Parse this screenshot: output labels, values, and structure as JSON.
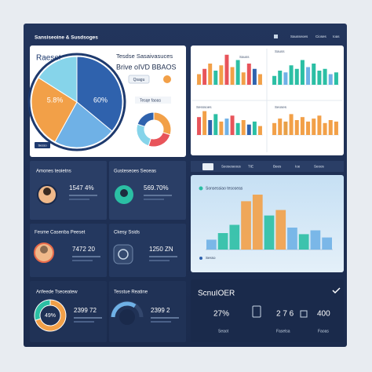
{
  "header": {
    "title": "Sansiseoine & Susdsoges",
    "links": [
      "Sausseoes",
      "Cioses",
      "Ioas"
    ]
  },
  "summary_card": {
    "title": "Raeset",
    "heading": "Tesdse Sasaivasuces",
    "subheading": "Brive oIVD BBAOS",
    "button": "Qsagu",
    "note": "Tesqe faoas",
    "badge": "Sesso",
    "pie": {
      "values": [
        36,
        22,
        26,
        16
      ],
      "colors": [
        "#2f62ad",
        "#6fb1e6",
        "#f2a048",
        "#86d4ea"
      ],
      "labels": [
        "5.8%",
        "60%"
      ]
    },
    "donut": {
      "values": [
        30,
        25,
        25,
        20
      ],
      "colors": [
        "#f2a048",
        "#e8545a",
        "#86d4ea",
        "#2f62ad"
      ]
    }
  },
  "bar_charts": [
    {
      "label": "Sauss",
      "values": [
        30,
        45,
        60,
        40,
        55,
        85,
        50,
        70,
        35,
        60,
        45,
        30
      ],
      "colors": [
        "#f2a048",
        "#e8545a",
        "#f2a048",
        "#2bbfa4",
        "#f2a048",
        "#e8545a",
        "#f2a048",
        "#2bbfa4",
        "#f2a048",
        "#e8545a",
        "#2f62ad",
        "#f2a048"
      ]
    },
    {
      "label": "Sauss",
      "values": [
        25,
        40,
        35,
        55,
        45,
        70,
        50,
        60,
        40,
        45,
        30,
        35
      ],
      "colors": [
        "#2bbfa4",
        "#2bbfa4",
        "#6fb1e6",
        "#2bbfa4",
        "#2bbfa4",
        "#2bbfa4",
        "#6fb1e6",
        "#2bbfa4",
        "#2bbfa4",
        "#2bbfa4",
        "#6fb1e6",
        "#2bbfa4"
      ]
    },
    {
      "label": "Sesssoes",
      "values": [
        60,
        80,
        50,
        70,
        45,
        55,
        65,
        40,
        50,
        35,
        45,
        30
      ],
      "colors": [
        "#e8545a",
        "#f2a048",
        "#2f62ad",
        "#2bbfa4",
        "#f2a048",
        "#6fb1e6",
        "#e8545a",
        "#2bbfa4",
        "#f2a048",
        "#2f62ad",
        "#2bbfa4",
        "#f2a048"
      ]
    },
    {
      "label": "Seoses",
      "values": [
        40,
        55,
        45,
        70,
        50,
        60,
        45,
        55,
        65,
        40,
        50,
        45
      ],
      "colors": [
        "#f2a048",
        "#f2a048",
        "#e8a048",
        "#f2a048",
        "#f2a048",
        "#f2a048",
        "#f2a048",
        "#f2a048",
        "#f2a048",
        "#f2a048",
        "#f2a048",
        "#f2a048"
      ]
    }
  ],
  "tiles": [
    {
      "title": "Amones teoietns",
      "value": "1547 4%"
    },
    {
      "title": "Gusteseoes Seoeas",
      "value": "569.70%"
    },
    {
      "title": "Fesme Casenba Peeset",
      "value": "7472 20"
    },
    {
      "title": "Ckesy Ssids",
      "value": "1250 ZN"
    },
    {
      "title": "Arifeede Tseoeatew",
      "value": "2399 72",
      "donut": {
        "values": [
          70,
          30
        ],
        "colors": [
          "#f2a048",
          "#2bbfa4"
        ],
        "center": "49%"
      }
    },
    {
      "title": "Tesstue Reatine",
      "value": "2399 2"
    }
  ],
  "tabs": [
    "Seoseseous",
    "TIE",
    "Bees",
    "Ioe",
    "Seoos"
  ],
  "main_chart": {
    "title": "Sonsessiao tesoseas",
    "legend": "Sesso",
    "values": [
      18,
      30,
      45,
      88,
      100,
      62,
      72,
      40,
      28,
      35,
      22
    ],
    "colors": [
      "#6fb1e6",
      "#2bbfa4",
      "#2bbfa4",
      "#f2a048",
      "#f2a048",
      "#2bbfa4",
      "#f2a048",
      "#6fb1e6",
      "#2bbfa4",
      "#6fb1e6",
      "#6fb1e6"
    ]
  },
  "stats_card": {
    "title": "ScnuIOER",
    "stats": [
      {
        "value": "27%",
        "label": "Seaot"
      },
      {
        "value": "2 7 6",
        "label": "Faselsa"
      },
      {
        "value": "400",
        "label": "Faoas"
      }
    ]
  }
}
